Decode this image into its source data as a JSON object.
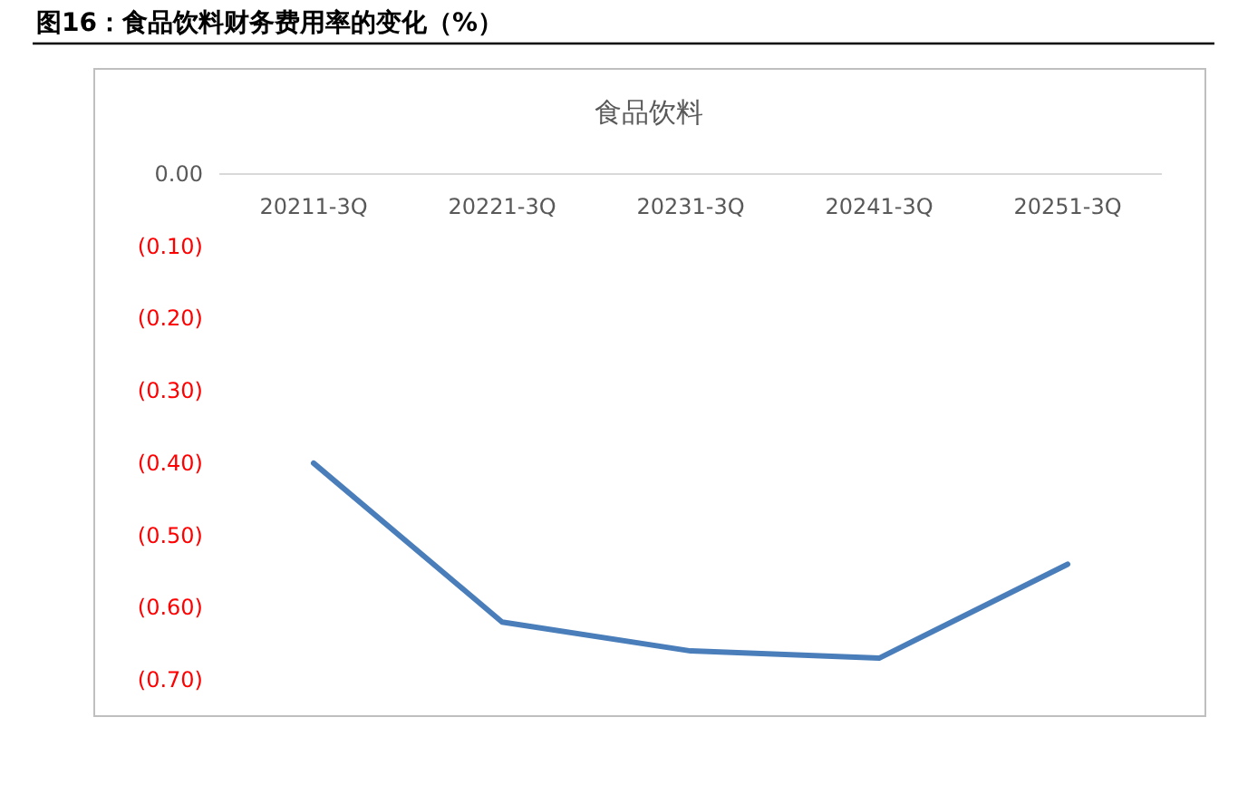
{
  "chart_data": {
    "type": "line",
    "title": "图16：食品饮料财务费用率的变化（%）",
    "subtitle": "食品饮料",
    "categories": [
      "20211-3Q",
      "20221-3Q",
      "20231-3Q",
      "20241-3Q",
      "20251-3Q"
    ],
    "series": [
      {
        "color": "#4a7ebb",
        "values": [
          -0.4,
          -0.62,
          -0.66,
          -0.67,
          -0.54
        ]
      }
    ],
    "ylim": [
      -0.7,
      0
    ],
    "yticks": [
      {
        "value": 0,
        "label": "0.00"
      },
      {
        "value": -0.1,
        "label": "(0.10)"
      },
      {
        "value": -0.2,
        "label": "(0.20)"
      },
      {
        "value": -0.3,
        "label": "(0.30)"
      },
      {
        "value": -0.4,
        "label": "(0.40)"
      },
      {
        "value": -0.5,
        "label": "(0.50)"
      },
      {
        "value": -0.6,
        "label": "(0.60)"
      },
      {
        "value": -0.7,
        "label": "(0.70)"
      }
    ],
    "grid": false,
    "marker": "none",
    "line_style": "solid"
  }
}
